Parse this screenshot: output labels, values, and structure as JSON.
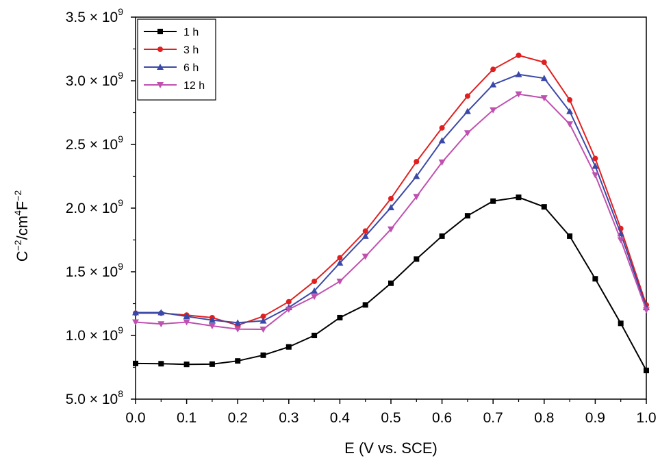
{
  "chart_data": {
    "type": "line",
    "xlabel": "E (V vs. SCE)",
    "ylabel": {
      "base": "C",
      "sup1": "−2",
      "mid": "/cm",
      "sup2": "4",
      "mid2": "F",
      "sup3": "−2"
    },
    "xlim": [
      0.0,
      1.0
    ],
    "ylim": [
      500000000,
      3500000000
    ],
    "x_ticks": [
      {
        "value": 0.0,
        "label": "0.0"
      },
      {
        "value": 0.1,
        "label": "0.1"
      },
      {
        "value": 0.2,
        "label": "0.2"
      },
      {
        "value": 0.3,
        "label": "0.3"
      },
      {
        "value": 0.4,
        "label": "0.4"
      },
      {
        "value": 0.5,
        "label": "0.5"
      },
      {
        "value": 0.6,
        "label": "0.6"
      },
      {
        "value": 0.7,
        "label": "0.7"
      },
      {
        "value": 0.8,
        "label": "0.8"
      },
      {
        "value": 0.9,
        "label": "0.9"
      },
      {
        "value": 1.0,
        "label": "1.0"
      }
    ],
    "y_ticks": [
      {
        "value": 500000000,
        "mantissa": "5.0",
        "times": "×",
        "base": "10",
        "exp": "8"
      },
      {
        "value": 1000000000,
        "mantissa": "1.0",
        "times": "×",
        "base": "10",
        "exp": "9"
      },
      {
        "value": 1500000000,
        "mantissa": "1.5",
        "times": "×",
        "base": "10",
        "exp": "9"
      },
      {
        "value": 2000000000,
        "mantissa": "2.0",
        "times": "×",
        "base": "10",
        "exp": "9"
      },
      {
        "value": 2500000000,
        "mantissa": "2.5",
        "times": "×",
        "base": "10",
        "exp": "9"
      },
      {
        "value": 3000000000,
        "mantissa": "3.0",
        "times": "×",
        "base": "10",
        "exp": "9"
      },
      {
        "value": 3500000000,
        "mantissa": "3.5",
        "times": "×",
        "base": "10",
        "exp": "9"
      }
    ],
    "grid": false,
    "legend_position": "top-left",
    "x": [
      0.0,
      0.05,
      0.1,
      0.15,
      0.2,
      0.25,
      0.3,
      0.35,
      0.4,
      0.45,
      0.5,
      0.55,
      0.6,
      0.65,
      0.7,
      0.75,
      0.8,
      0.85,
      0.9,
      0.95,
      1.0
    ],
    "series": [
      {
        "name": "1 h",
        "color": "#000000",
        "marker": "square",
        "values": [
          780000000,
          778000000,
          773000000,
          775000000,
          800000000,
          845000000,
          910000000,
          1000000000,
          1140000000,
          1240000000,
          1410000000,
          1600000000,
          1780000000,
          1940000000,
          2055000000,
          2085000000,
          2010000000,
          1780000000,
          1445000000,
          1095000000,
          725000000
        ]
      },
      {
        "name": "3 h",
        "color": "#e02020",
        "marker": "circle",
        "values": [
          1175000000,
          1175000000,
          1160000000,
          1140000000,
          1080000000,
          1150000000,
          1265000000,
          1425000000,
          1610000000,
          1820000000,
          2075000000,
          2365000000,
          2630000000,
          2880000000,
          3090000000,
          3200000000,
          3145000000,
          2850000000,
          2390000000,
          1840000000,
          1240000000
        ]
      },
      {
        "name": "6 h",
        "color": "#3a48a8",
        "marker": "triangle-up",
        "values": [
          1180000000,
          1180000000,
          1150000000,
          1120000000,
          1100000000,
          1115000000,
          1220000000,
          1350000000,
          1570000000,
          1780000000,
          2005000000,
          2250000000,
          2530000000,
          2760000000,
          2970000000,
          3050000000,
          3020000000,
          2760000000,
          2330000000,
          1800000000,
          1220000000
        ]
      },
      {
        "name": "12 h",
        "color": "#c050b0",
        "marker": "triangle-down",
        "values": [
          1105000000,
          1090000000,
          1105000000,
          1075000000,
          1050000000,
          1048000000,
          1205000000,
          1305000000,
          1425000000,
          1620000000,
          1835000000,
          2090000000,
          2360000000,
          2590000000,
          2770000000,
          2895000000,
          2865000000,
          2660000000,
          2260000000,
          1750000000,
          1200000000
        ]
      }
    ]
  }
}
